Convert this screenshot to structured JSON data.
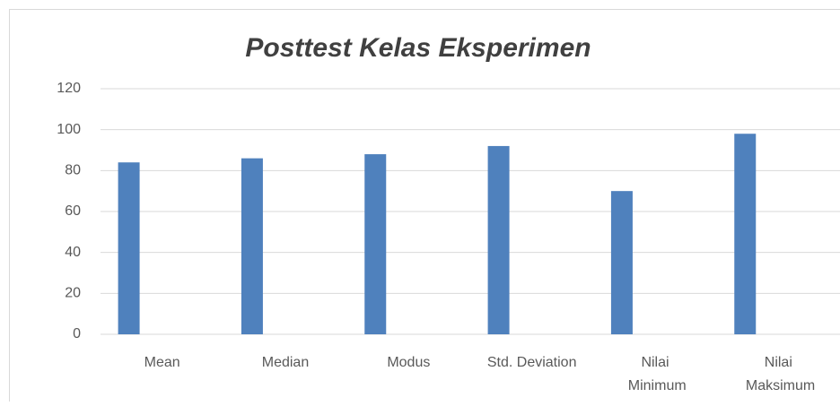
{
  "chart_data": {
    "type": "bar",
    "title": "Posttest Kelas Eksperimen",
    "categories": [
      "Mean",
      "Median",
      "Modus",
      "Std. Deviation",
      "Nilai Minimum",
      "Nilai Maksimum"
    ],
    "values": [
      84,
      86,
      88,
      92,
      70,
      98
    ],
    "color": "#4f81bd",
    "ylim": [
      0,
      120
    ],
    "yticks": [
      0,
      20,
      40,
      60,
      80,
      100,
      120
    ],
    "grid": true
  }
}
